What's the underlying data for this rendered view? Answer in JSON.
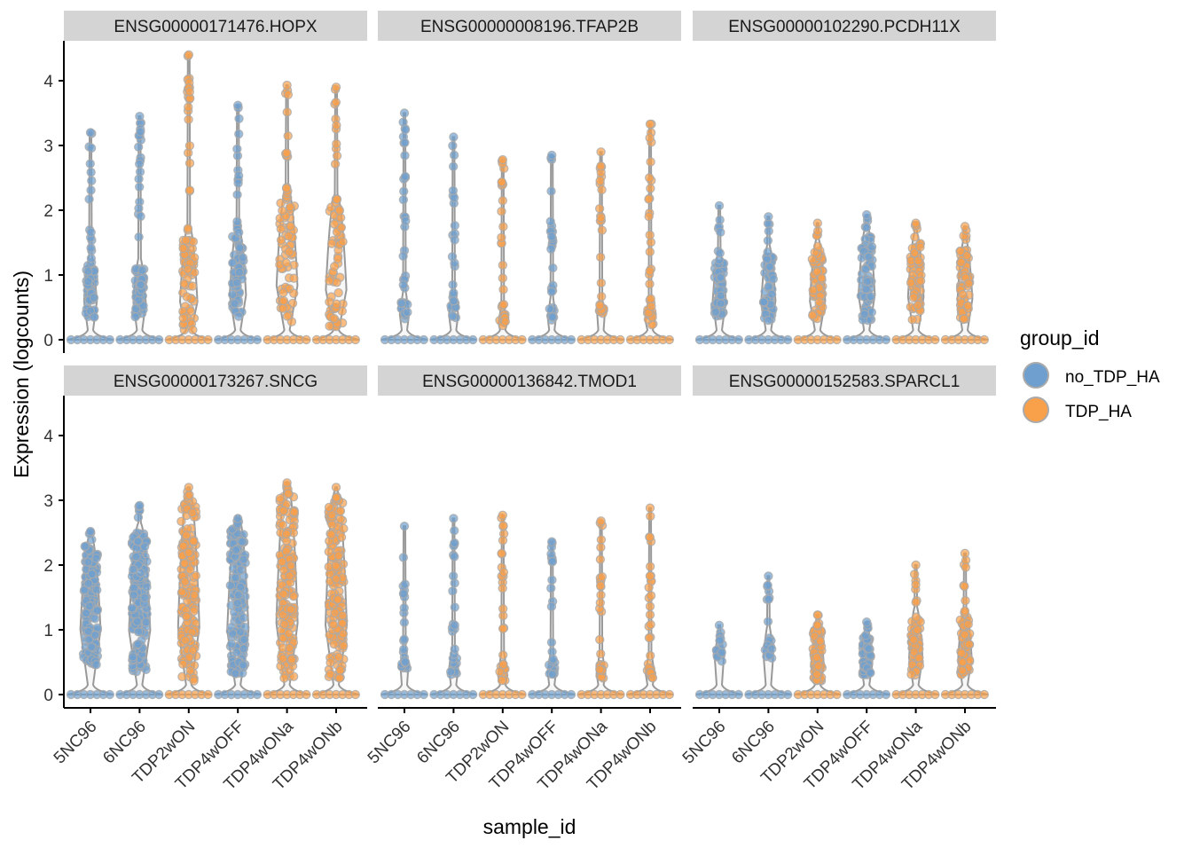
{
  "chart_data": {
    "type": "violin",
    "xlabel": "sample_id",
    "ylabel": "Expression (logcounts)",
    "ylim": [
      0,
      4.5
    ],
    "yticks": [
      0,
      1,
      2,
      3,
      4
    ],
    "grid": false,
    "legend": {
      "title": "group_id",
      "position": "right",
      "entries": [
        {
          "name": "no_TDP_HA",
          "color": "#6f9fcf"
        },
        {
          "name": "TDP_HA",
          "color": "#f9a04a"
        }
      ]
    },
    "categories": [
      "5NC96",
      "6NC96",
      "TDP2wON",
      "TDP4wOFF",
      "TDP4wONa",
      "TDP4wONb"
    ],
    "groups": [
      "no_TDP_HA",
      "no_TDP_HA",
      "TDP_HA",
      "no_TDP_HA",
      "TDP_HA",
      "TDP_HA"
    ],
    "facets": [
      {
        "title": "ENSG00000171476.HOPX",
        "max": [
          3.2,
          3.45,
          4.4,
          3.62,
          3.93,
          3.9
        ],
        "bulk_upper": [
          1.15,
          1.1,
          1.6,
          1.6,
          2.2,
          2.1
        ],
        "bulk_lower": [
          0.35,
          0.35,
          0.15,
          0.3,
          0.25,
          0.2
        ]
      },
      {
        "title": "ENSG00000008196.TFAP2B",
        "max": [
          3.5,
          3.13,
          2.78,
          2.85,
          2.9,
          3.33
        ],
        "bulk_upper": [
          0.6,
          0.6,
          0.4,
          0.5,
          0.5,
          0.5
        ],
        "bulk_lower": [
          0.3,
          0.3,
          0.2,
          0.3,
          0.4,
          0.2
        ]
      },
      {
        "title": "ENSG00000102290.PCDH11X",
        "max": [
          2.07,
          1.9,
          1.8,
          1.93,
          1.8,
          1.75
        ],
        "bulk_upper": [
          1.2,
          1.3,
          1.4,
          1.6,
          1.5,
          1.4
        ],
        "bulk_lower": [
          0.35,
          0.3,
          0.25,
          0.3,
          0.3,
          0.3
        ]
      },
      {
        "title": "ENSG00000173267.SNCG",
        "max": [
          2.52,
          2.92,
          3.2,
          2.72,
          3.27,
          3.2
        ],
        "bulk_upper": [
          2.3,
          2.5,
          3.0,
          2.6,
          3.1,
          3.0
        ],
        "bulk_lower": [
          0.45,
          0.35,
          0.2,
          0.3,
          0.25,
          0.25
        ]
      },
      {
        "title": "ENSG00000136842.TMOD1",
        "max": [
          2.6,
          2.72,
          2.77,
          2.36,
          2.68,
          2.88
        ],
        "bulk_upper": [
          0.5,
          0.6,
          0.5,
          0.5,
          0.5,
          0.5
        ],
        "bulk_lower": [
          0.4,
          0.3,
          0.2,
          0.3,
          0.25,
          0.25
        ]
      },
      {
        "title": "ENSG00000152583.SPARCL1",
        "max": [
          1.07,
          1.83,
          1.23,
          1.12,
          2.0,
          2.18
        ],
        "bulk_upper": [
          0.8,
          0.9,
          1.0,
          0.9,
          1.2,
          1.2
        ],
        "bulk_lower": [
          0.5,
          0.5,
          0.2,
          0.3,
          0.3,
          0.3
        ]
      }
    ]
  }
}
